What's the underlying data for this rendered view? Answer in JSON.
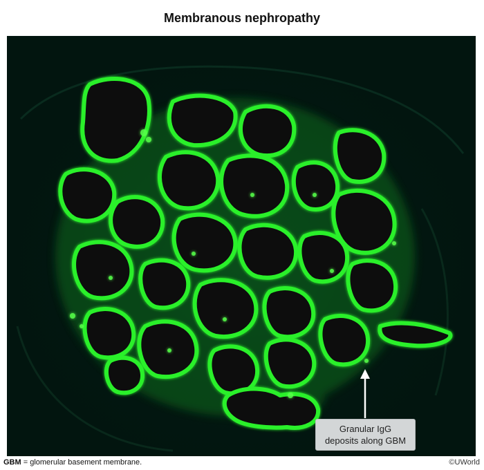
{
  "title": "Membranous nephropathy",
  "callout": {
    "line1": "Granular IgG",
    "line2": "deposits along GBM"
  },
  "footer": {
    "abbr": "GBM",
    "definition": " = glomerular basement membrane."
  },
  "copyright": "©UWorld",
  "colors": {
    "background": "#02150f",
    "fluorescence": "#2bf02b",
    "callout_fill": "#d3d6d7"
  }
}
